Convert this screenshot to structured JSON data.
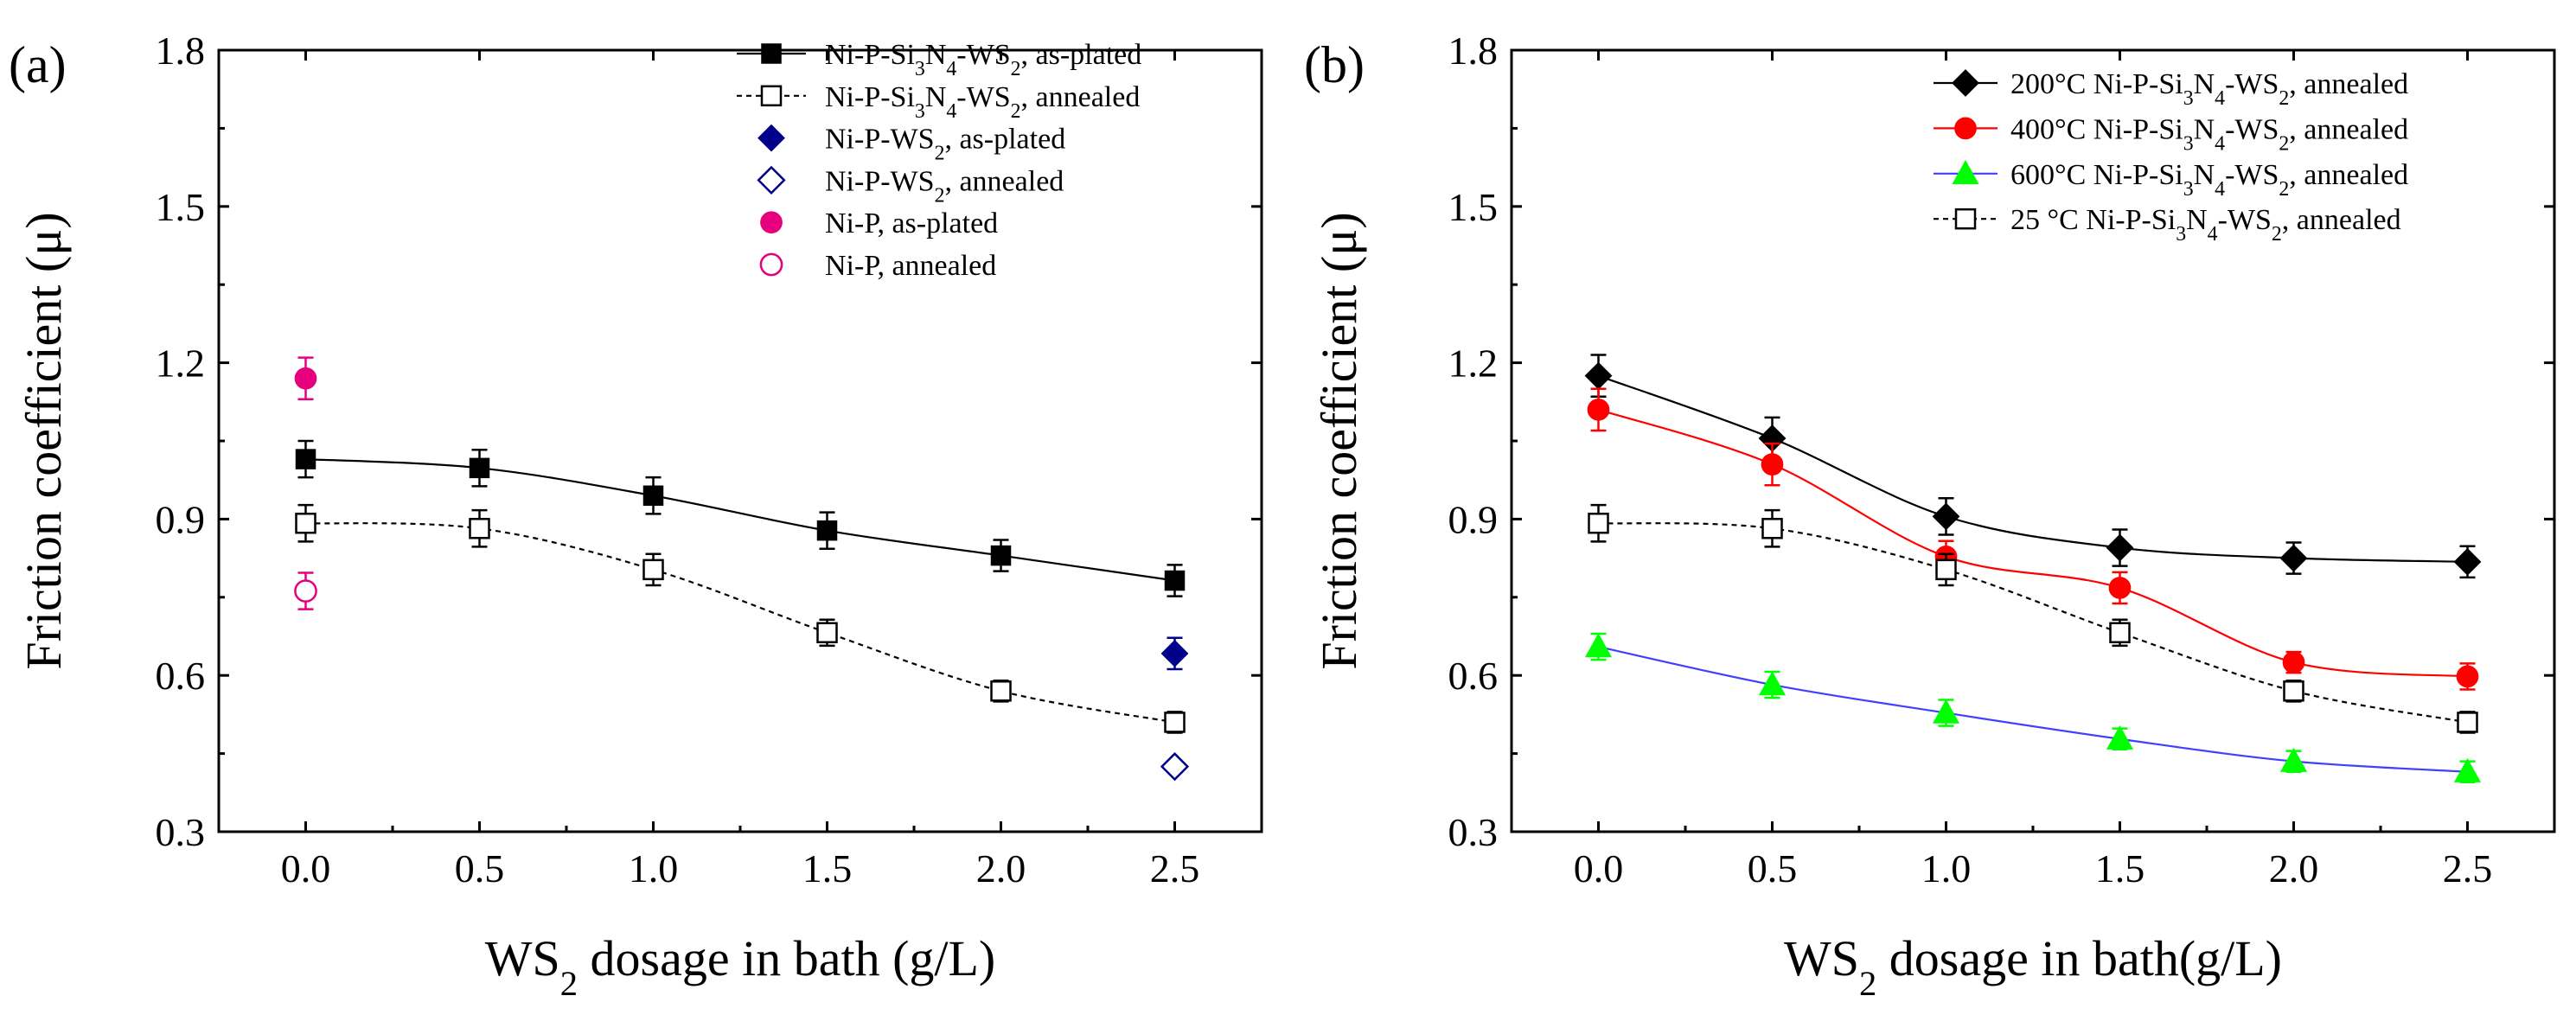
{
  "figure": {
    "background": "#ffffff"
  },
  "chart_data": [
    {
      "type": "scatter",
      "panel_label": "(a)",
      "title": "",
      "xlabel": {
        "prefix": "WS",
        "sub": "2",
        "suffix": " dosage in bath (g/L)"
      },
      "ylabel": "Friction coefficient (μ)",
      "xlim": [
        -0.25,
        2.75
      ],
      "ylim": [
        0.3,
        1.8
      ],
      "xticks": [
        "0.0",
        "0.5",
        "1.0",
        "1.5",
        "2.0",
        "2.5"
      ],
      "yticks": [
        "0.3",
        "0.6",
        "0.9",
        "1.2",
        "1.5",
        "1.8"
      ],
      "legend_position": "top-right",
      "series": [
        {
          "name": "Ni-P-Si3N4-WS2, as-plated",
          "legend_parts": [
            [
              "Ni-P-Si",
              ""
            ],
            [
              "3",
              "sub"
            ],
            [
              "N",
              ""
            ],
            [
              "4",
              "sub"
            ],
            [
              "-WS",
              ""
            ],
            [
              "2",
              "sub"
            ],
            [
              ", as-plated",
              ""
            ]
          ],
          "x": [
            0,
            0.5,
            1.0,
            1.5,
            2.0,
            2.5
          ],
          "y": [
            1.015,
            0.998,
            0.945,
            0.878,
            0.83,
            0.782
          ],
          "err": [
            0.035,
            0.035,
            0.035,
            0.035,
            0.03,
            0.03
          ],
          "marker": "square",
          "filled": true,
          "color": "#000000",
          "line": "solid"
        },
        {
          "name": "Ni-P-Si3N4-WS2, annealed",
          "legend_parts": [
            [
              "Ni-P-Si",
              ""
            ],
            [
              "3",
              "sub"
            ],
            [
              "N",
              ""
            ],
            [
              "4",
              "sub"
            ],
            [
              "-WS",
              ""
            ],
            [
              "2",
              "sub"
            ],
            [
              ", annealed",
              ""
            ]
          ],
          "x": [
            0,
            0.5,
            1.0,
            1.5,
            2.0,
            2.5
          ],
          "y": [
            0.892,
            0.882,
            0.803,
            0.682,
            0.57,
            0.51
          ],
          "err": [
            0.035,
            0.035,
            0.03,
            0.025,
            0.02,
            0.02
          ],
          "marker": "square",
          "filled": false,
          "color": "#000000",
          "line": "dashed"
        },
        {
          "name": "Ni-P-WS2, as-plated",
          "legend_parts": [
            [
              "Ni-P-WS",
              ""
            ],
            [
              "2",
              "sub"
            ],
            [
              ", as-plated",
              ""
            ]
          ],
          "x": [
            2.5
          ],
          "y": [
            0.642
          ],
          "err": [
            0.03
          ],
          "marker": "diamond",
          "filled": true,
          "color": "#00008b",
          "line": "none"
        },
        {
          "name": "Ni-P-WS2, annealed",
          "legend_parts": [
            [
              "Ni-P-WS",
              ""
            ],
            [
              "2",
              "sub"
            ],
            [
              ", annealed",
              ""
            ]
          ],
          "x": [
            2.5
          ],
          "y": [
            0.425
          ],
          "err": [
            0.0
          ],
          "marker": "diamond",
          "filled": false,
          "color": "#00008b",
          "line": "none"
        },
        {
          "name": "Ni-P, as-plated",
          "legend_parts": [
            [
              "Ni-P, as-plated",
              ""
            ]
          ],
          "x": [
            0
          ],
          "y": [
            1.17
          ],
          "err": [
            0.04
          ],
          "marker": "circle",
          "filled": true,
          "color": "#e6007e",
          "line": "none"
        },
        {
          "name": "Ni-P, annealed",
          "legend_parts": [
            [
              "Ni-P, annealed",
              ""
            ]
          ],
          "x": [
            0
          ],
          "y": [
            0.762
          ],
          "err": [
            0.035
          ],
          "marker": "circle",
          "filled": false,
          "color": "#e6007e",
          "line": "none"
        }
      ]
    },
    {
      "type": "line",
      "panel_label": "(b)",
      "title": "",
      "xlabel": {
        "prefix": "WS",
        "sub": "2",
        "suffix": " dosage in bath(g/L)"
      },
      "ylabel": "Friction coefficient (μ)",
      "xlim": [
        -0.25,
        2.75
      ],
      "ylim": [
        0.3,
        1.8
      ],
      "xticks": [
        "0.0",
        "0.5",
        "1.0",
        "1.5",
        "2.0",
        "2.5"
      ],
      "yticks": [
        "0.3",
        "0.6",
        "0.9",
        "1.2",
        "1.5",
        "1.8"
      ],
      "legend_position": "top-right",
      "series": [
        {
          "name": "200°C Ni-P-Si3N4-WS2, annealed",
          "legend_parts": [
            [
              "200°C Ni-P-Si",
              ""
            ],
            [
              "3",
              "sub"
            ],
            [
              "N",
              ""
            ],
            [
              "4",
              "sub"
            ],
            [
              "-WS",
              ""
            ],
            [
              "2",
              "sub"
            ],
            [
              ", annealed",
              ""
            ]
          ],
          "x": [
            0,
            0.5,
            1.0,
            1.5,
            2.0,
            2.5
          ],
          "y": [
            1.175,
            1.055,
            0.905,
            0.845,
            0.825,
            0.818
          ],
          "err": [
            0.04,
            0.04,
            0.035,
            0.035,
            0.03,
            0.03
          ],
          "marker": "diamond",
          "filled": true,
          "color": "#000000",
          "line": "solid"
        },
        {
          "name": "400°C Ni-P-Si3N4-WS2, annealed",
          "legend_parts": [
            [
              "400°C Ni-P-Si",
              ""
            ],
            [
              "3",
              "sub"
            ],
            [
              "N",
              ""
            ],
            [
              "4",
              "sub"
            ],
            [
              "-WS",
              ""
            ],
            [
              "2",
              "sub"
            ],
            [
              ", annealed",
              ""
            ]
          ],
          "x": [
            0,
            0.5,
            1.0,
            1.5,
            2.0,
            2.5
          ],
          "y": [
            1.11,
            1.005,
            0.828,
            0.768,
            0.625,
            0.598
          ],
          "err": [
            0.04,
            0.04,
            0.03,
            0.03,
            0.02,
            0.025
          ],
          "marker": "circle",
          "filled": true,
          "color": "#ff0000",
          "line": "solid"
        },
        {
          "name": "600°C Ni-P-Si3N4-WS2, annealed",
          "legend_parts": [
            [
              "600°C Ni-P-Si",
              ""
            ],
            [
              "3",
              "sub"
            ],
            [
              "N",
              ""
            ],
            [
              "4",
              "sub"
            ],
            [
              "-WS",
              ""
            ],
            [
              "2",
              "sub"
            ],
            [
              ", annealed",
              ""
            ]
          ],
          "x": [
            0,
            0.5,
            1.0,
            1.5,
            2.0,
            2.5
          ],
          "y": [
            0.655,
            0.582,
            0.528,
            0.478,
            0.435,
            0.415
          ],
          "err": [
            0.025,
            0.025,
            0.025,
            0.02,
            0.02,
            0.02
          ],
          "marker": "triangle",
          "filled": true,
          "color": "#00ff00",
          "line": "solid",
          "line_color": "#4040ff"
        },
        {
          "name": "25 °C Ni-P-Si3N4-WS2, annealed",
          "legend_parts": [
            [
              "25 °C Ni-P-Si",
              ""
            ],
            [
              "3",
              "sub"
            ],
            [
              "N",
              ""
            ],
            [
              "4",
              "sub"
            ],
            [
              "-WS",
              ""
            ],
            [
              "2",
              "sub"
            ],
            [
              ", annealed",
              ""
            ]
          ],
          "x": [
            0,
            0.5,
            1.0,
            1.5,
            2.0,
            2.5
          ],
          "y": [
            0.892,
            0.882,
            0.803,
            0.682,
            0.57,
            0.51
          ],
          "err": [
            0.035,
            0.035,
            0.03,
            0.025,
            0.02,
            0.02
          ],
          "marker": "square",
          "filled": false,
          "color": "#000000",
          "line": "dashed"
        }
      ]
    }
  ]
}
